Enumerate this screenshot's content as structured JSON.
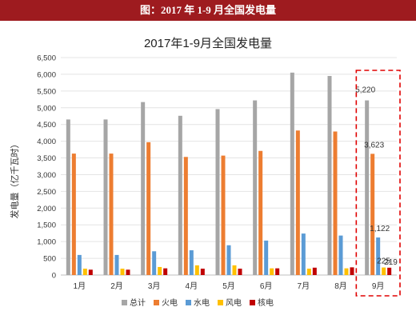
{
  "banner": {
    "text": "图：2017 年 1-9 月全国发电量"
  },
  "chart_data": {
    "type": "bar",
    "title": "2017年1-9月全国发电量",
    "ylabel": "发电量（亿千瓦时）",
    "xlabel": "",
    "ylim": [
      0,
      6500
    ],
    "yticks": [
      "0",
      "500",
      "1,000",
      "1,500",
      "2,000",
      "2,500",
      "3,000",
      "3,500",
      "4,000",
      "4,500",
      "5,000",
      "5,500",
      "6,000",
      "6,500"
    ],
    "categories": [
      "1月",
      "2月",
      "3月",
      "4月",
      "5月",
      "6月",
      "7月",
      "8月",
      "9月"
    ],
    "series": [
      {
        "name": "总计",
        "color": "#a6a6a6",
        "values": [
          4650,
          4650,
          5170,
          4760,
          4960,
          5220,
          6050,
          5950,
          5220
        ]
      },
      {
        "name": "火电",
        "color": "#ed7d31",
        "values": [
          3630,
          3630,
          3970,
          3530,
          3570,
          3710,
          4320,
          4290,
          3623
        ]
      },
      {
        "name": "水电",
        "color": "#5b9bd5",
        "values": [
          600,
          600,
          710,
          740,
          890,
          1030,
          1240,
          1180,
          1122
        ]
      },
      {
        "name": "风电",
        "color": "#ffc000",
        "values": [
          190,
          190,
          240,
          290,
          290,
          200,
          190,
          200,
          225
        ]
      },
      {
        "name": "核电",
        "color": "#c00000",
        "values": [
          160,
          160,
          200,
          190,
          190,
          200,
          220,
          230,
          219
        ]
      }
    ],
    "annotations": {
      "total": "5,220",
      "thermal": "3,623",
      "hydro": "1,122",
      "wind": "225",
      "nuclear": "219"
    },
    "highlight_category": "9月",
    "highlight_color": "#e00000",
    "legend_position": "bottom"
  }
}
